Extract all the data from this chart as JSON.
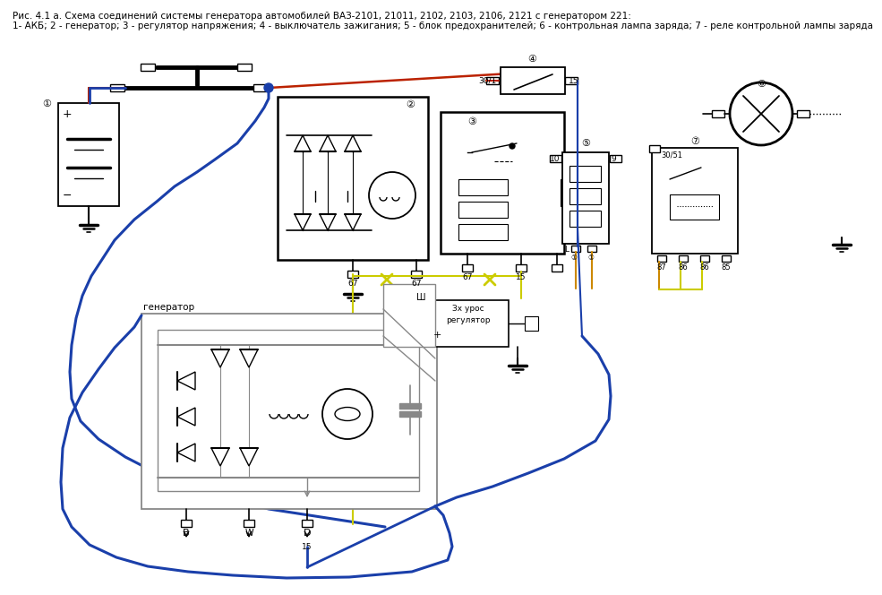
{
  "title_line1": "Рис. 4.1 а. Схема соединений системы генератора автомобилей ВАЗ-2101, 21011, 2102, 2103, 2106, 2121 с генератором 221:",
  "title_line2": "1- АКБ; 2 - генератор; 3 - регулятор напряжения; 4 - выключатель зажигания; 5 - блок предохранителей; 6 - контрольная лампа заряда; 7 - реле контрольной лампы заряда",
  "bg_color": "#ffffff",
  "lc": "#000000",
  "bc": "#1a3faa",
  "rc": "#bb2200",
  "yc": "#cccc00",
  "oc": "#cc8800",
  "gc": "#888888"
}
